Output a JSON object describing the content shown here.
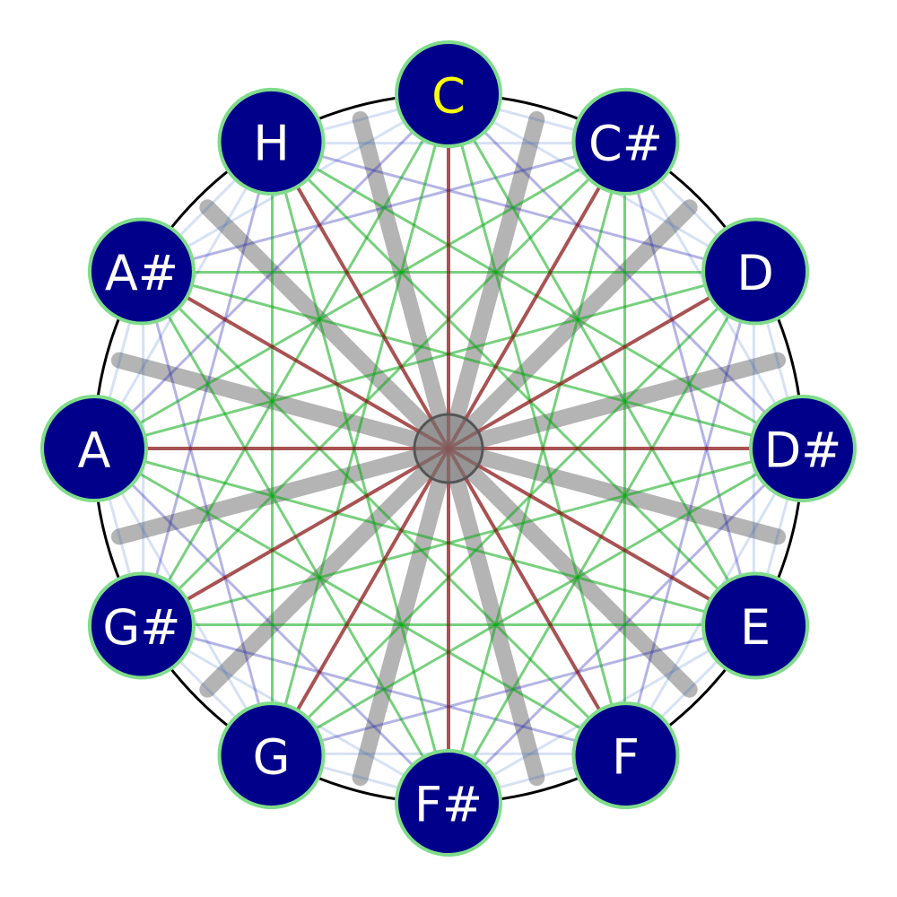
{
  "notes": [
    "C",
    "C#",
    "D",
    "D#",
    "E",
    "F",
    "F#",
    "G",
    "G#",
    "A",
    "A#",
    "H"
  ],
  "highlighted_note": "C",
  "interval_lines": [
    {
      "semitones": 1,
      "color": "#1e5ac8",
      "opacity": 0.18,
      "drawn": true
    },
    {
      "semitones": 2,
      "color": "#1e5ac8",
      "opacity": 0.18,
      "drawn": true
    },
    {
      "semitones": 3,
      "color": "#2828b4",
      "opacity": 0.35,
      "drawn": true
    },
    {
      "semitones": 4,
      "color": "#0aaa14",
      "opacity": 0.55,
      "drawn": true
    },
    {
      "semitones": 5,
      "color": "#0aaa14",
      "opacity": 0.55,
      "drawn": true
    },
    {
      "semitones": 6,
      "color": "#8b1a1a",
      "opacity": 0.75,
      "drawn": true
    }
  ],
  "background_spokes": {
    "count": 12,
    "color": "#b4b4b4",
    "offset_degrees": 15
  },
  "colors": {
    "node_fill": "#00008b",
    "node_stroke": "#7fdc8a",
    "label": "#ffffff",
    "highlight_label": "#ffff00",
    "outer_circle": "#000000",
    "hub_fill": "#808080",
    "hub_stroke": "#555555"
  }
}
